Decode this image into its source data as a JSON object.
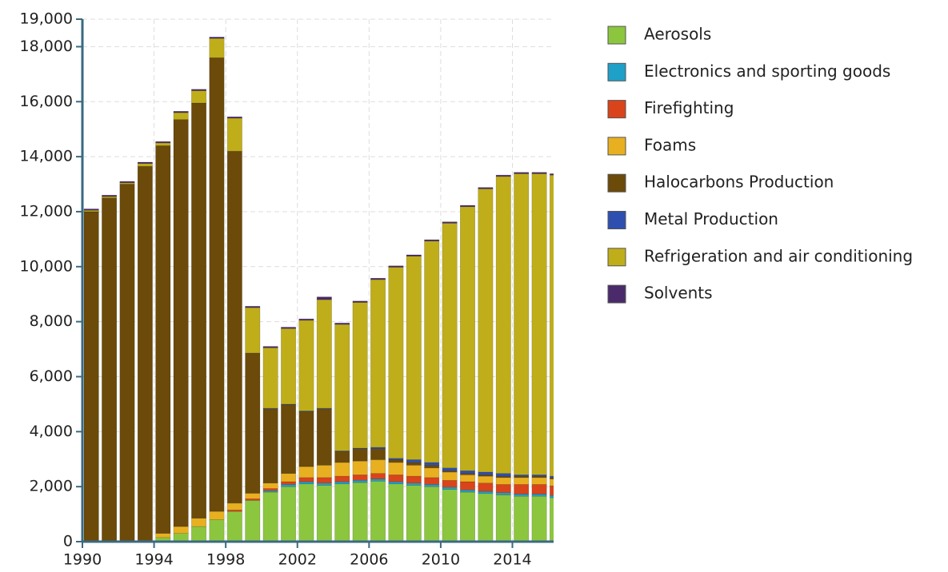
{
  "chart_data": {
    "type": "stacked-bar",
    "x": [
      1990,
      1991,
      1992,
      1993,
      1994,
      1995,
      1996,
      1997,
      1998,
      1999,
      2000,
      2001,
      2002,
      2003,
      2004,
      2005,
      2006,
      2007,
      2008,
      2009,
      2010,
      2011,
      2012,
      2013,
      2014,
      2015,
      2016
    ],
    "xlim": [
      1990,
      2016.3
    ],
    "xticks": [
      1990,
      1994,
      1998,
      2002,
      2006,
      2010,
      2014
    ],
    "ylim": [
      0,
      19000
    ],
    "yticks": [
      0,
      {
        "value": 2000,
        "label": "2,000"
      },
      {
        "value": 4000,
        "label": "4,000"
      },
      {
        "value": 6000,
        "label": "6,000"
      },
      {
        "value": 8000,
        "label": "8,000"
      },
      {
        "value": 10000,
        "label": "10,000"
      },
      {
        "value": 12000,
        "label": "12,000"
      },
      {
        "value": 14000,
        "label": "14,000"
      },
      {
        "value": 16000,
        "label": "16,000"
      },
      {
        "value": 18000,
        "label": "18,000"
      },
      {
        "value": 19000,
        "label": "19,000"
      }
    ],
    "grid": true,
    "legend": "right",
    "series": [
      {
        "name": "Aerosols",
        "color": "#8cc63f",
        "values": [
          0,
          0,
          0,
          0,
          150,
          300,
          550,
          800,
          1100,
          1500,
          1800,
          2000,
          2100,
          2050,
          2100,
          2150,
          2200,
          2100,
          2050,
          2000,
          1900,
          1800,
          1750,
          1700,
          1650,
          1650,
          1600
        ]
      },
      {
        "name": "Electronics and sporting goods",
        "color": "#1fa0c8",
        "values": [
          0,
          0,
          0,
          0,
          0,
          0,
          0,
          0,
          0,
          0,
          50,
          80,
          80,
          80,
          80,
          80,
          80,
          80,
          80,
          80,
          80,
          80,
          80,
          80,
          80,
          80,
          80
        ]
      },
      {
        "name": "Firefighting",
        "color": "#d9441a",
        "values": [
          0,
          0,
          0,
          0,
          0,
          0,
          0,
          0,
          50,
          60,
          80,
          100,
          150,
          200,
          200,
          200,
          200,
          250,
          250,
          250,
          250,
          300,
          300,
          300,
          350,
          350,
          350
        ]
      },
      {
        "name": "Foams",
        "color": "#e8b020",
        "values": [
          0,
          0,
          0,
          50,
          150,
          250,
          300,
          300,
          250,
          200,
          200,
          300,
          400,
          450,
          500,
          500,
          500,
          450,
          400,
          350,
          300,
          250,
          250,
          250,
          250,
          250,
          250
        ]
      },
      {
        "name": "Halocarbons Production",
        "color": "#6b4a0a",
        "values": [
          12000,
          12500,
          13000,
          13600,
          14100,
          14800,
          15100,
          16500,
          12800,
          5100,
          2700,
          2500,
          2000,
          2050,
          400,
          450,
          400,
          100,
          100,
          100,
          50,
          50,
          50,
          50,
          50,
          50,
          50
        ]
      },
      {
        "name": "Metal Production",
        "color": "#2e4fb0",
        "values": [
          0,
          0,
          0,
          0,
          0,
          0,
          0,
          0,
          0,
          0,
          20,
          20,
          20,
          20,
          20,
          20,
          50,
          50,
          100,
          100,
          100,
          100,
          100,
          100,
          50,
          50,
          50
        ]
      },
      {
        "name": "Refrigeration and air conditioning",
        "color": "#bfae1a",
        "values": [
          50,
          50,
          50,
          100,
          100,
          250,
          450,
          700,
          1200,
          1650,
          2200,
          2750,
          3300,
          3950,
          4600,
          5300,
          6100,
          6950,
          7400,
          8050,
          8900,
          9600,
          10300,
          10800,
          10950,
          10950,
          10950
        ]
      },
      {
        "name": "Solvents",
        "color": "#4a2a6a",
        "values": [
          50,
          50,
          50,
          50,
          50,
          50,
          50,
          50,
          50,
          50,
          50,
          50,
          50,
          100,
          50,
          50,
          50,
          50,
          50,
          50,
          50,
          50,
          50,
          50,
          50,
          50,
          50
        ]
      }
    ]
  }
}
